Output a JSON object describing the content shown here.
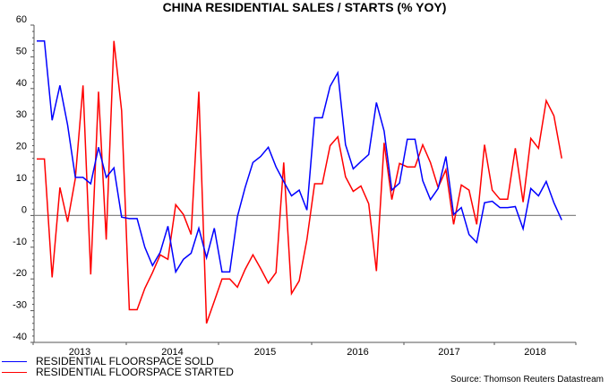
{
  "chart_data": {
    "type": "line",
    "title": "CHINA RESIDENTIAL SALES / STARTS (% YOY)",
    "xlabel": "",
    "ylabel": "",
    "ylim": [
      -40,
      60
    ],
    "yticks": [
      60,
      50,
      40,
      30,
      20,
      10,
      0,
      -10,
      -20,
      -30,
      -40
    ],
    "xticks": [
      "2013",
      "2014",
      "2015",
      "2016",
      "2017",
      "2018"
    ],
    "frequency": "monthly",
    "x_start": "2013-01",
    "x_end": "2018-09",
    "grid": false,
    "zero_line": true,
    "legend_position": "bottom-left",
    "series": [
      {
        "name": "RESIDENTIAL FLOORSPACE SOLD",
        "color": "#0000ff",
        "values": [
          55,
          55,
          30,
          41,
          28.5,
          12,
          12,
          10,
          21.5,
          12,
          15,
          -0.5,
          -1,
          -1,
          -10,
          -15.8,
          -11.6,
          -3.4,
          -17.8,
          -13.8,
          -11.9,
          -4,
          -13.3,
          -4,
          -17.8,
          -17.8,
          -0.3,
          8.8,
          16.7,
          18.6,
          21.5,
          15.3,
          10.7,
          6.2,
          8,
          1.7,
          30.8,
          30.8,
          40.7,
          45,
          22.3,
          14.7,
          17,
          19.2,
          35.6,
          26.6,
          8,
          10.2,
          24,
          24,
          11,
          5,
          8.5,
          18.6,
          0.3,
          2.5,
          -6,
          -8.5,
          4,
          4.5,
          2.5,
          2.5,
          2.8,
          -4.2,
          8.5,
          6.2,
          10.7,
          4,
          -1.4
        ]
      },
      {
        "name": "RESIDENTIAL FLOORSPACE STARTED",
        "color": "#ff0000",
        "values": [
          17.8,
          17.8,
          -19.5,
          8.8,
          -2,
          11.6,
          41,
          -18.6,
          39,
          -7.6,
          55,
          33,
          -29.7,
          -29.7,
          -23,
          -18,
          -12.4,
          -13.8,
          3.4,
          0.3,
          -6,
          39,
          -34,
          -27,
          -20,
          -20,
          -22.6,
          -17,
          -12.4,
          -16.7,
          -21.3,
          -18,
          16.7,
          -24.6,
          -20.6,
          -7.6,
          10,
          10,
          22,
          24.8,
          12.2,
          7.6,
          9.3,
          3.7,
          -17.5,
          22.9,
          5,
          16.4,
          15.3,
          15.3,
          22.3,
          16.7,
          8.8,
          14.4,
          -2.8,
          9.6,
          8,
          -2.8,
          22.3,
          8,
          5.1,
          5.1,
          21.2,
          4.2,
          24.3,
          21.2,
          36.2,
          31.4,
          18
        ]
      }
    ],
    "source": "Source: Thomson Reuters Datastream"
  },
  "legend": {
    "items": [
      {
        "label": "RESIDENTIAL FLOORSPACE SOLD",
        "color": "#0000ff"
      },
      {
        "label": "RESIDENTIAL FLOORSPACE STARTED",
        "color": "#ff0000"
      }
    ]
  }
}
